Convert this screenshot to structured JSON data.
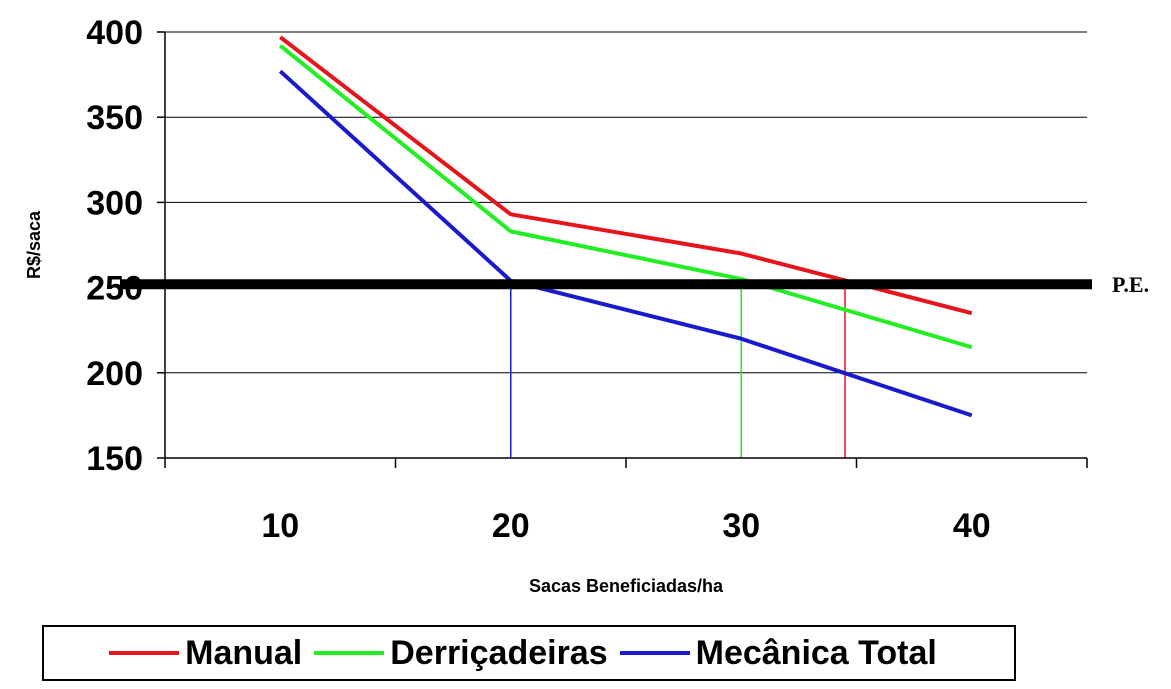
{
  "chart_data": {
    "type": "line",
    "x": [
      10,
      20,
      30,
      40
    ],
    "xlabel": "Sacas Beneficiadas/ha",
    "ylabel": "R$/saca",
    "ylim": [
      150,
      400
    ],
    "yticks": [
      150,
      200,
      250,
      300,
      350,
      400
    ],
    "grid": true,
    "series": [
      {
        "name": "Manual",
        "color": "#e8141c",
        "values": [
          397,
          293,
          270,
          235
        ]
      },
      {
        "name": "Derriçadeiras",
        "color": "#22ee22",
        "values": [
          392,
          283,
          255,
          215
        ]
      },
      {
        "name": "Mecânica Total",
        "color": "#1a1acc",
        "values": [
          377,
          254,
          220,
          175
        ]
      }
    ],
    "reference_line": {
      "label": "P.E.",
      "value": 252
    },
    "break_even_drops": [
      {
        "series": "Mecânica Total",
        "x": 20,
        "color": "#1a1acc"
      },
      {
        "series": "Derriçadeiras",
        "x": 30,
        "color": "#22ee22"
      },
      {
        "series": "Manual",
        "x": 34.5,
        "color": "#e8141c"
      }
    ],
    "legend_position": "bottom"
  }
}
